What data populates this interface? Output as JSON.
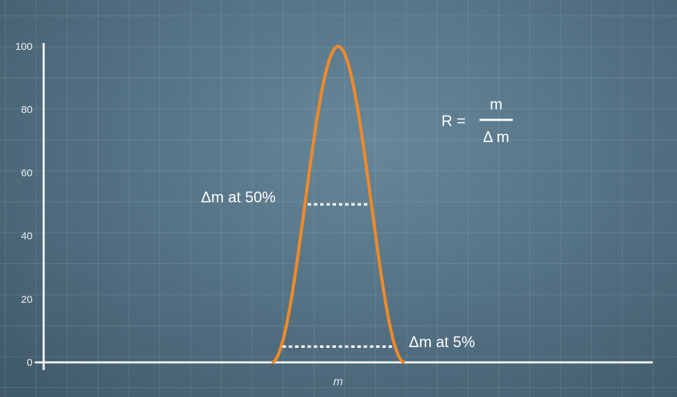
{
  "chart_data": {
    "type": "line",
    "xlabel": "m",
    "ylabel": "",
    "ylim": [
      0,
      100
    ],
    "yticks": [
      "0",
      "20",
      "40",
      "60",
      "80",
      "100"
    ],
    "grid": true,
    "series": [
      {
        "peak_height": 100,
        "color": "#f0892a",
        "shape": "single-peak"
      }
    ],
    "annotations": {
      "half_width_label": "Δm at 50%",
      "half_width_level": 50,
      "base_width_label": "Δm at 5%",
      "base_width_level": 5
    },
    "formula": {
      "lhs": "R =",
      "numerator": "m",
      "denominator": "Δ m"
    }
  }
}
